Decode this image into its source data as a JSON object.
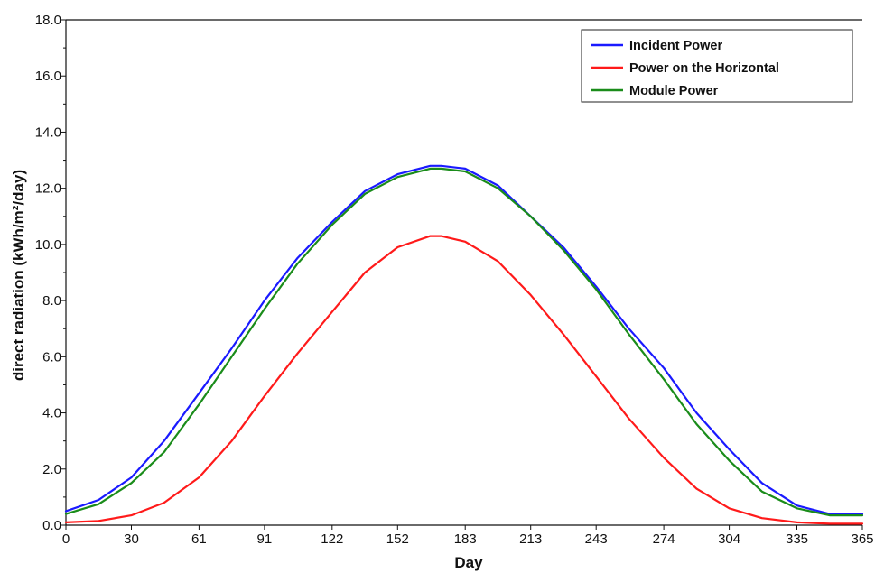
{
  "chart_data": {
    "type": "line",
    "title": "",
    "xlabel": "Day",
    "ylabel": "direct radiation (kWh/m²/day)",
    "xlim": [
      0,
      365
    ],
    "ylim": [
      0,
      18
    ],
    "x_ticks": [
      0,
      30,
      61,
      91,
      122,
      152,
      183,
      213,
      243,
      274,
      304,
      335,
      365
    ],
    "y_ticks": [
      "0.0",
      "2.0",
      "4.0",
      "6.0",
      "8.0",
      "10.0",
      "12.0",
      "14.0",
      "16.0",
      "18.0"
    ],
    "grid": false,
    "legend_position": "top-right",
    "x": [
      0,
      15,
      30,
      45,
      61,
      76,
      91,
      106,
      122,
      137,
      152,
      167,
      172,
      183,
      198,
      213,
      228,
      243,
      258,
      274,
      289,
      304,
      319,
      335,
      350,
      365
    ],
    "series": [
      {
        "name": "Incident Power",
        "color": "#1a1aff",
        "values": [
          0.5,
          0.9,
          1.7,
          3.0,
          4.7,
          6.3,
          8.0,
          9.5,
          10.8,
          11.9,
          12.5,
          12.8,
          12.8,
          12.7,
          12.1,
          11.0,
          9.9,
          8.5,
          7.0,
          5.6,
          4.0,
          2.7,
          1.5,
          0.7,
          0.4,
          0.4
        ]
      },
      {
        "name": "Power on the Horizontal",
        "color": "#ff1a1a",
        "values": [
          0.1,
          0.15,
          0.35,
          0.8,
          1.7,
          3.0,
          4.6,
          6.1,
          7.6,
          9.0,
          9.9,
          10.3,
          10.3,
          10.1,
          9.4,
          8.2,
          6.8,
          5.3,
          3.8,
          2.4,
          1.3,
          0.6,
          0.25,
          0.1,
          0.05,
          0.05
        ]
      },
      {
        "name": "Module Power",
        "color": "#1a8c1a",
        "values": [
          0.4,
          0.75,
          1.5,
          2.6,
          4.3,
          6.0,
          7.7,
          9.3,
          10.7,
          11.8,
          12.4,
          12.7,
          12.7,
          12.6,
          12.0,
          11.0,
          9.8,
          8.4,
          6.8,
          5.2,
          3.6,
          2.3,
          1.2,
          0.6,
          0.35,
          0.35
        ]
      }
    ]
  }
}
